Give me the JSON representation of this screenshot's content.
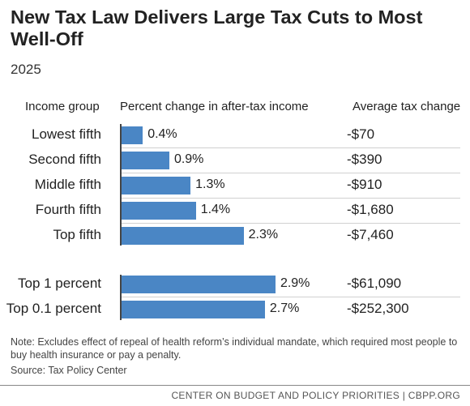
{
  "title": "New Tax Law Delivers Large Tax Cuts to Most Well-Off",
  "subtitle": "2025",
  "headers": {
    "group": "Income group",
    "pct": "Percent change in after-tax income",
    "avg": "Average tax change"
  },
  "chart_data": {
    "type": "bar",
    "orientation": "horizontal",
    "title": "New Tax Law Delivers Large Tax Cuts to Most Well-Off",
    "subtitle": "2025",
    "series": [
      {
        "name": "Percent change in after-tax income",
        "values": [
          0.4,
          0.9,
          1.3,
          1.4,
          2.3,
          2.9,
          2.7
        ],
        "labels": [
          "0.4%",
          "0.9%",
          "1.3%",
          "1.4%",
          "2.3%",
          "2.9%",
          "2.7%"
        ]
      }
    ],
    "categories": [
      "Lowest fifth",
      "Second fifth",
      "Middle fifth",
      "Fourth fifth",
      "Top fifth",
      "Top 1 percent",
      "Top 0.1 percent"
    ],
    "average_tax_change": [
      "-$70",
      "-$390",
      "-$910",
      "-$1,680",
      "-$7,460",
      "-$61,090",
      "-$252,300"
    ],
    "xlim": [
      0,
      3.0
    ],
    "grid": false,
    "colors": {
      "bar": "#4a86c5"
    }
  },
  "note": "Note: Excludes effect of repeal of health reform’s individual mandate, which required most people to buy health insurance or pay a penalty.",
  "source": "Source: Tax Policy Center",
  "footer": "CENTER ON BUDGET AND POLICY PRIORITIES | CBPP.ORG"
}
